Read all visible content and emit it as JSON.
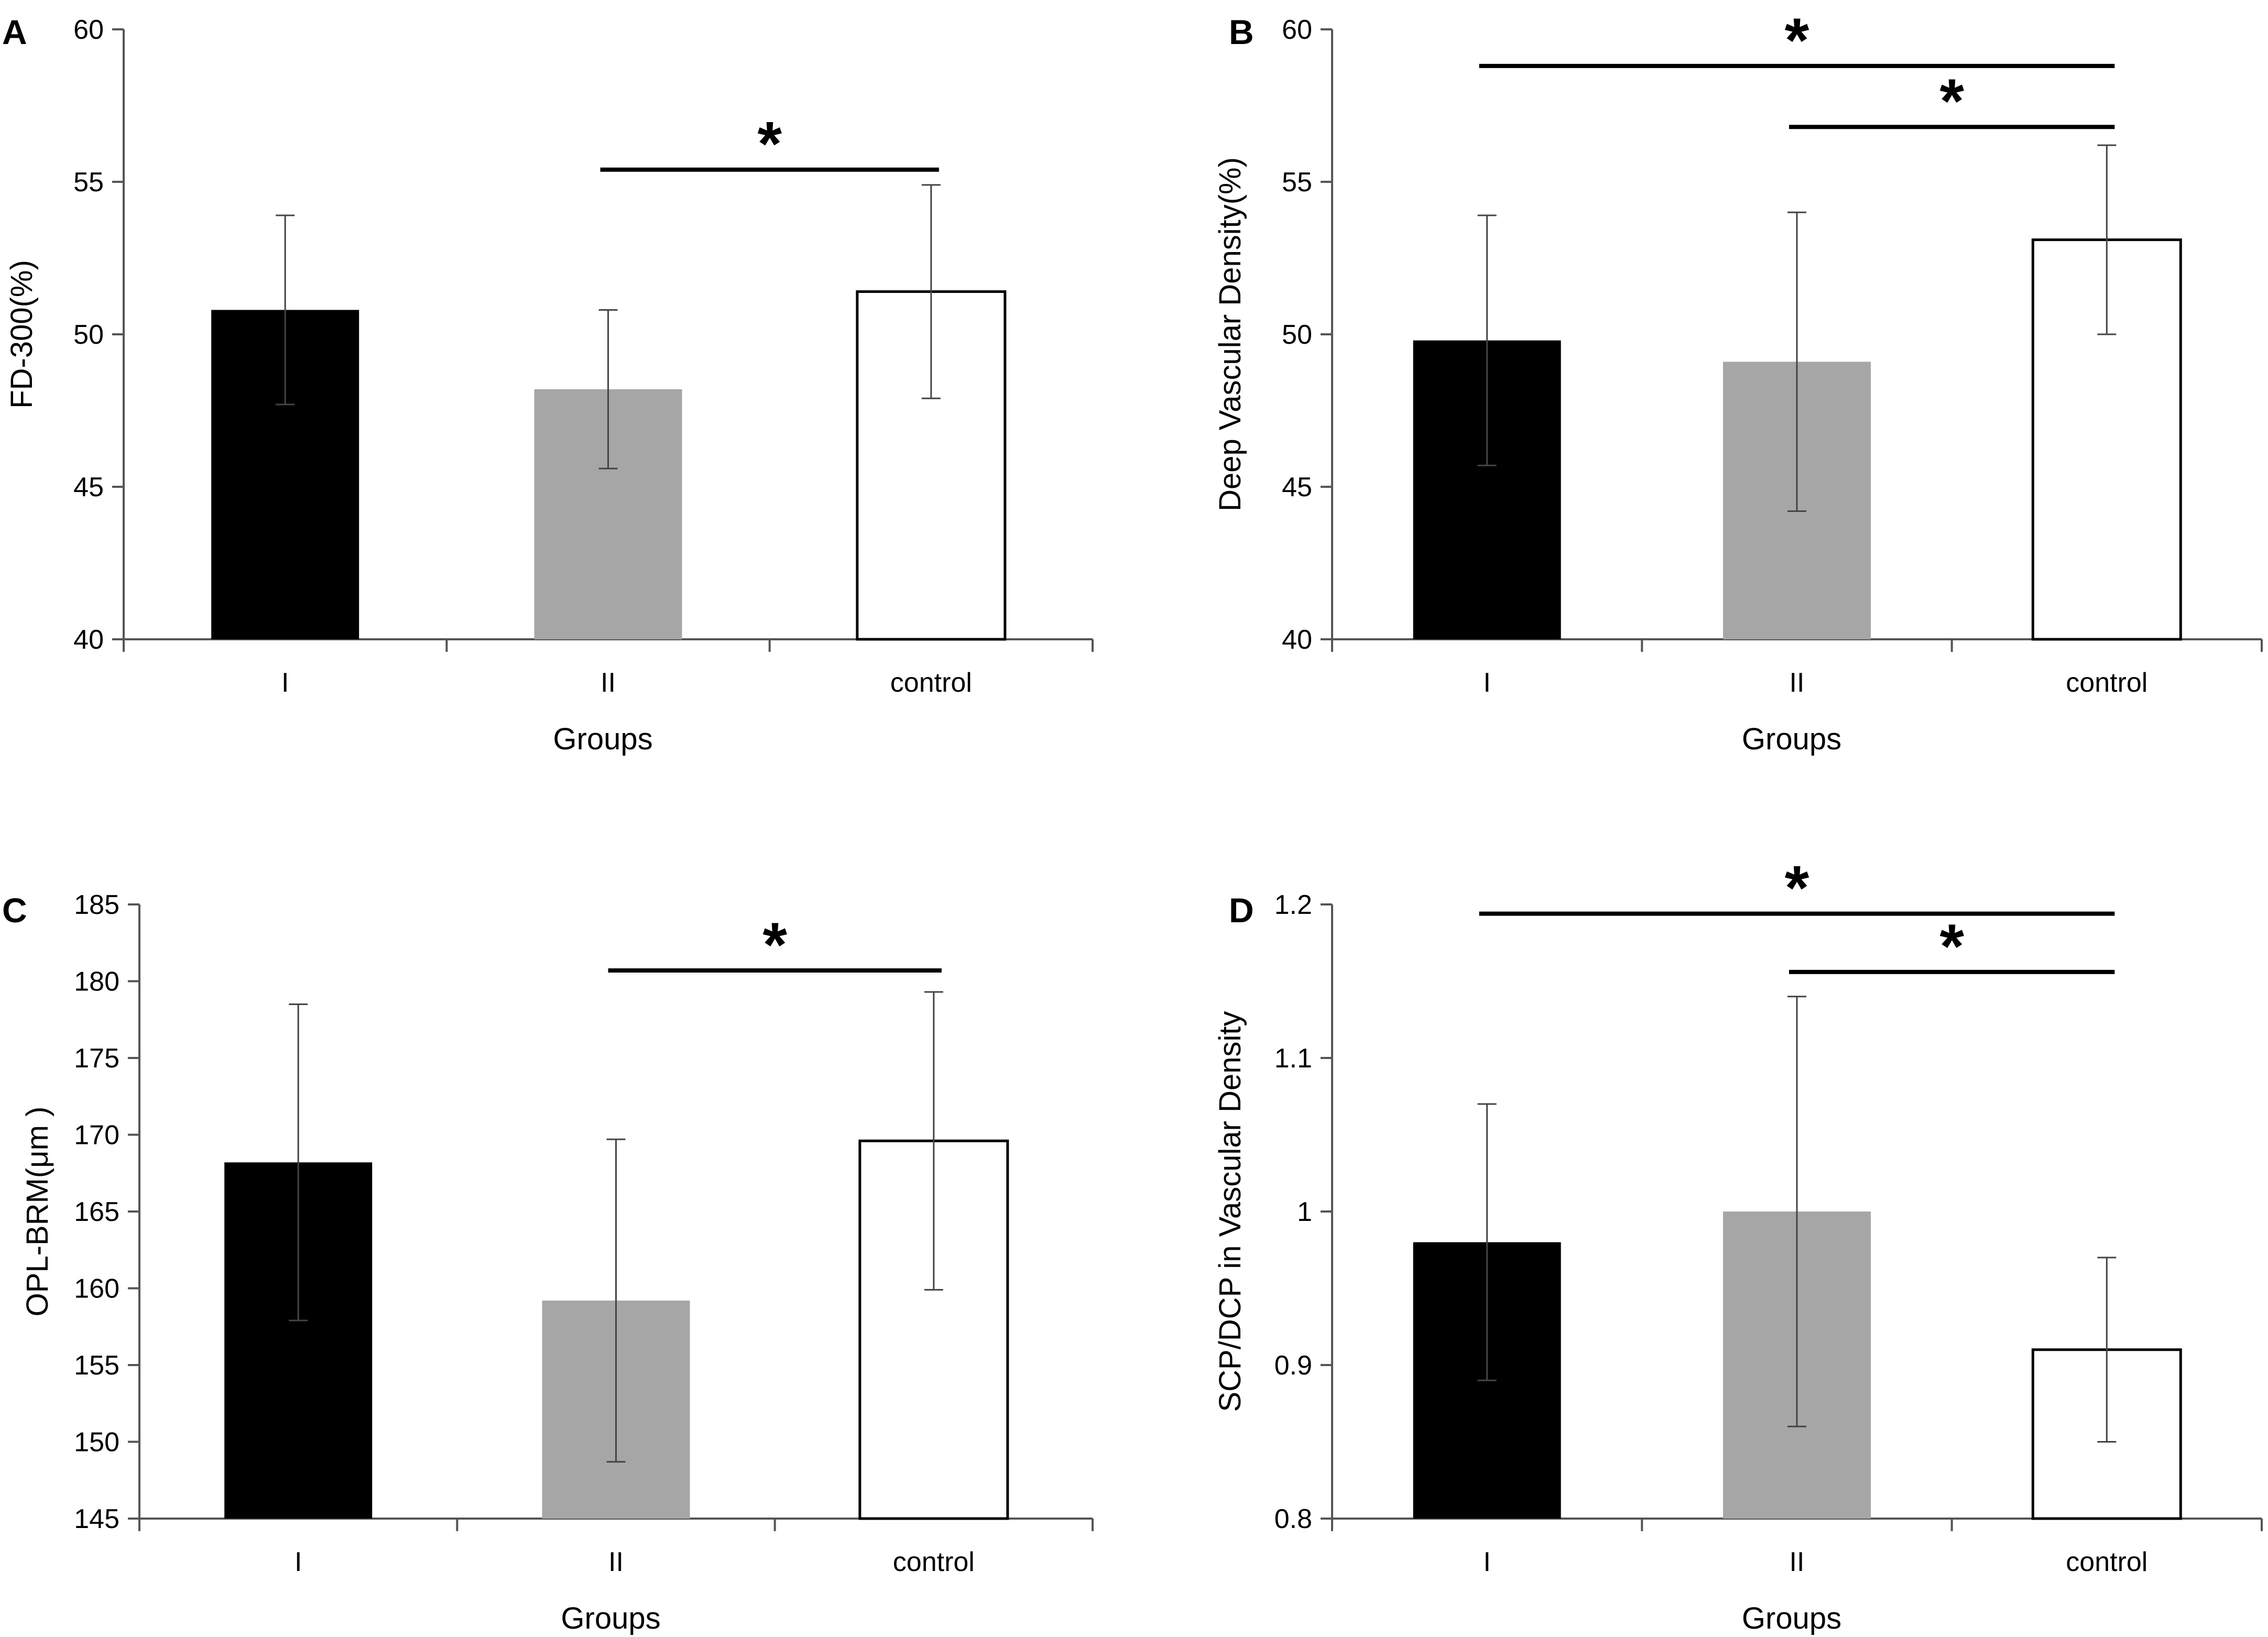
{
  "figure": {
    "panels": [
      "A",
      "B",
      "C",
      "D"
    ]
  },
  "chart_data": [
    {
      "panel": "A",
      "type": "bar",
      "categories": [
        "I",
        "II",
        "control"
      ],
      "values": [
        50.8,
        48.2,
        51.4
      ],
      "error": [
        3.1,
        2.6,
        3.5
      ],
      "colors": [
        "#000000",
        "#a6a6a6",
        "#ffffff"
      ],
      "xlabel": "Groups",
      "ylabel": "FD-300(%)",
      "ylim": [
        40,
        60
      ],
      "yticks": [
        40,
        45,
        50,
        55,
        60
      ],
      "ytick_labels": [
        "40",
        "45",
        "50",
        "55",
        "60"
      ],
      "significance": [
        {
          "from": 1,
          "to": 2,
          "label": "*",
          "level": 55.4
        }
      ]
    },
    {
      "panel": "B",
      "type": "bar",
      "categories": [
        "I",
        "II",
        "control"
      ],
      "values": [
        49.8,
        49.1,
        53.1
      ],
      "error": [
        4.1,
        4.9,
        3.1
      ],
      "colors": [
        "#000000",
        "#a6a6a6",
        "#ffffff"
      ],
      "xlabel": "Groups",
      "ylabel": "Deep Vascular Density(%)",
      "ylim": [
        40,
        60
      ],
      "yticks": [
        40,
        45,
        50,
        55,
        60
      ],
      "ytick_labels": [
        "40",
        "45",
        "50",
        "55",
        "60"
      ],
      "significance": [
        {
          "from": 0,
          "to": 2,
          "label": "*",
          "level": 58.8
        },
        {
          "from": 1,
          "to": 2,
          "label": "*",
          "level": 56.8
        }
      ]
    },
    {
      "panel": "C",
      "type": "bar",
      "categories": [
        "I",
        "II",
        "control"
      ],
      "values": [
        168.2,
        159.2,
        169.6
      ],
      "error": [
        10.3,
        10.5,
        9.7
      ],
      "colors": [
        "#000000",
        "#a6a6a6",
        "#ffffff"
      ],
      "xlabel": "Groups",
      "ylabel": "OPL-BRM(μm )",
      "ylim": [
        145,
        185
      ],
      "yticks": [
        145,
        150,
        155,
        160,
        165,
        170,
        175,
        180,
        185
      ],
      "ytick_labels": [
        "145",
        "150",
        "155",
        "160",
        "165",
        "170",
        "175",
        "180",
        "185"
      ],
      "significance": [
        {
          "from": 1,
          "to": 2,
          "label": "*",
          "level": 180.7
        }
      ]
    },
    {
      "panel": "D",
      "type": "bar",
      "categories": [
        "I",
        "II",
        "control"
      ],
      "values": [
        0.98,
        1.0,
        0.91
      ],
      "error": [
        0.09,
        0.14,
        0.06
      ],
      "colors": [
        "#000000",
        "#a6a6a6",
        "#ffffff"
      ],
      "xlabel": "Groups",
      "ylabel": "SCP/DCP in Vascular Density",
      "ylim": [
        0.8,
        1.2
      ],
      "yticks": [
        0.8,
        0.9,
        1.0,
        1.1,
        1.2
      ],
      "ytick_labels": [
        "0.8",
        "0.9",
        "1",
        "1.1",
        "1.2"
      ],
      "significance": [
        {
          "from": 0,
          "to": 2,
          "label": "*",
          "level": 1.194
        },
        {
          "from": 1,
          "to": 2,
          "label": "*",
          "level": 1.156
        }
      ]
    }
  ]
}
